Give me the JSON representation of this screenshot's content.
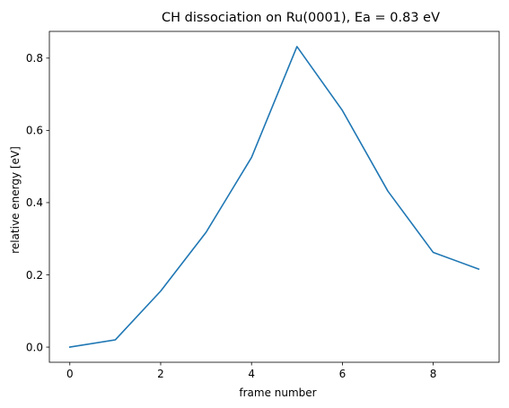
{
  "chart_data": {
    "type": "line",
    "title": "CH dissociation on Ru(0001), Ea = 0.83 eV",
    "xlabel": "frame number",
    "ylabel": "relative energy [eV]",
    "xlim": [
      -0.45,
      9.45
    ],
    "ylim": [
      -0.042,
      0.874
    ],
    "xticks": [
      0,
      2,
      4,
      6,
      8
    ],
    "xtick_labels": [
      "0",
      "2",
      "4",
      "6",
      "8"
    ],
    "yticks": [
      0.0,
      0.2,
      0.4,
      0.6,
      0.8
    ],
    "ytick_labels": [
      "0.0",
      "0.2",
      "0.4",
      "0.6",
      "0.8"
    ],
    "grid": false,
    "legend": "none",
    "series": [
      {
        "color": "#1f77b4",
        "x": [
          0,
          1,
          2,
          3,
          4,
          5,
          6,
          7,
          8,
          9
        ],
        "y": [
          0.0,
          0.02,
          0.155,
          0.318,
          0.525,
          0.832,
          0.655,
          0.432,
          0.262,
          0.216
        ]
      }
    ]
  }
}
